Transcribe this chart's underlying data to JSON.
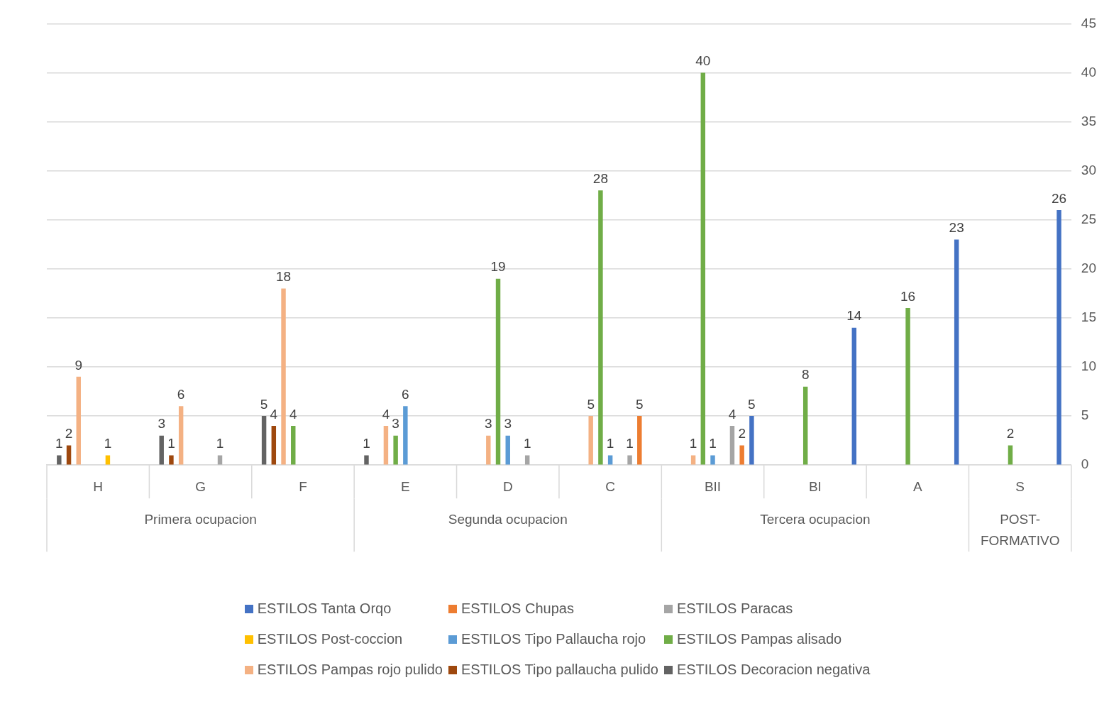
{
  "chart_data": {
    "type": "bar",
    "categories": [
      "H",
      "G",
      "F",
      "E",
      "D",
      "C",
      "BII",
      "BI",
      "A",
      "S"
    ],
    "series": [
      {
        "name": "ESTILOS Tanta Orqo",
        "color": "#4472c4",
        "values": [
          null,
          null,
          null,
          null,
          null,
          null,
          5,
          14,
          23,
          26
        ]
      },
      {
        "name": "ESTILOS Chupas",
        "color": "#ed7d31",
        "values": [
          null,
          null,
          null,
          null,
          null,
          5,
          2,
          null,
          null,
          null
        ]
      },
      {
        "name": "ESTILOS Paracas",
        "color": "#a5a5a5",
        "values": [
          null,
          1,
          null,
          null,
          1,
          1,
          4,
          null,
          null,
          null
        ]
      },
      {
        "name": "ESTILOS Post-coccion",
        "color": "#ffc000",
        "values": [
          1,
          null,
          null,
          null,
          null,
          null,
          null,
          null,
          null,
          null
        ]
      },
      {
        "name": "ESTILOS Tipo Pallaucha rojo",
        "color": "#5b9bd5",
        "values": [
          null,
          null,
          null,
          6,
          3,
          1,
          1,
          null,
          null,
          null
        ]
      },
      {
        "name": "ESTILOS Pampas alisado",
        "color": "#70ad47",
        "values": [
          null,
          null,
          4,
          3,
          19,
          28,
          40,
          8,
          16,
          2
        ]
      },
      {
        "name": "ESTILOS Pampas rojo pulido",
        "color": "#f4b183",
        "values": [
          9,
          6,
          18,
          4,
          3,
          5,
          1,
          null,
          null,
          null
        ]
      },
      {
        "name": "ESTILOS Tipo pallaucha pulido",
        "color": "#9e480e",
        "values": [
          2,
          1,
          4,
          null,
          null,
          null,
          null,
          null,
          null,
          null
        ]
      },
      {
        "name": "ESTILOS Decoracion negativa",
        "color": "#636363",
        "values": [
          1,
          3,
          5,
          1,
          null,
          null,
          null,
          null,
          null,
          null
        ]
      }
    ],
    "ylim": [
      0,
      45
    ],
    "yticks": [
      0,
      5,
      10,
      15,
      20,
      25,
      30,
      35,
      40,
      45
    ],
    "grid": "y",
    "legend": "bottom",
    "data_labels": true,
    "annotations": [
      "Primera ocupacion",
      "Segunda ocupacion",
      "Tercera ocupacion",
      "POST-FORMATIVO"
    ]
  }
}
